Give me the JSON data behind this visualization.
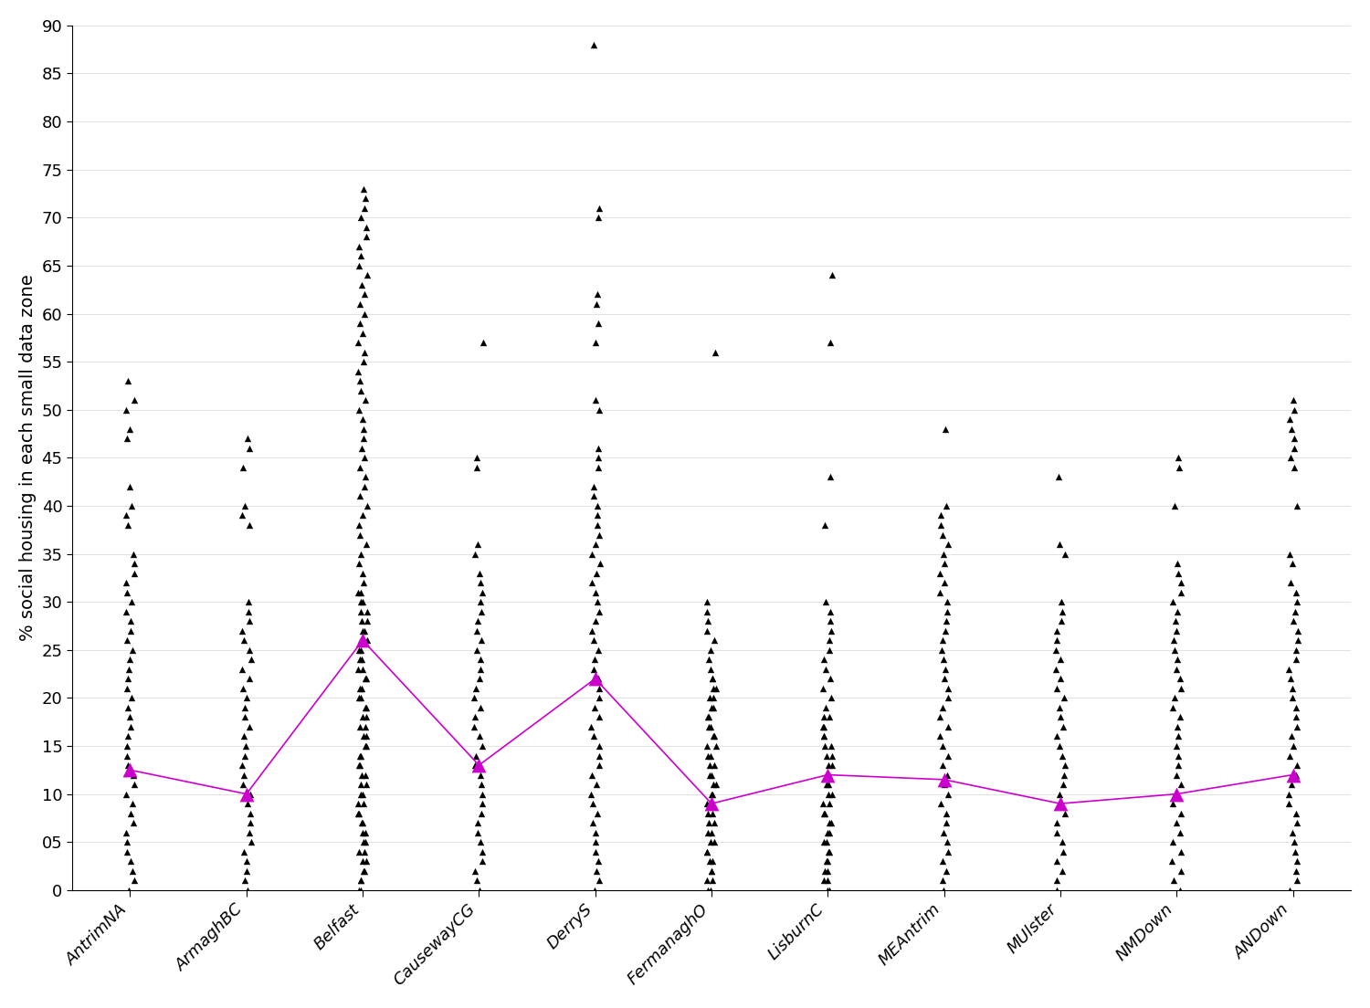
{
  "categories": [
    "AntrimNA",
    "ArmaghBC",
    "Belfast",
    "CausewayCG",
    "DerryS",
    "FermanaghO",
    "LisburnC",
    "MEAntrim",
    "MUlster",
    "NMDown",
    "ANDown"
  ],
  "medians": [
    12.5,
    10.0,
    26.0,
    13.0,
    22.0,
    9.0,
    12.0,
    11.5,
    9.0,
    10.0,
    12.0
  ],
  "point_data": {
    "AntrimNA": [
      0,
      1,
      2,
      3,
      4,
      5,
      6,
      7,
      8,
      9,
      10,
      11,
      12,
      13,
      14,
      15,
      16,
      17,
      18,
      19,
      20,
      21,
      22,
      23,
      24,
      25,
      26,
      27,
      28,
      29,
      30,
      31,
      32,
      33,
      34,
      35,
      38,
      39,
      40,
      42,
      47,
      48,
      50,
      51,
      53
    ],
    "ArmaghBC": [
      0,
      1,
      2,
      3,
      4,
      5,
      6,
      7,
      8,
      9,
      10,
      11,
      12,
      13,
      14,
      15,
      16,
      17,
      18,
      19,
      20,
      21,
      22,
      23,
      24,
      25,
      26,
      27,
      28,
      29,
      30,
      38,
      39,
      40,
      44,
      46,
      47
    ],
    "Belfast": [
      0,
      0,
      1,
      1,
      2,
      2,
      3,
      3,
      4,
      4,
      5,
      5,
      6,
      6,
      7,
      7,
      8,
      8,
      9,
      9,
      10,
      10,
      11,
      11,
      12,
      12,
      13,
      13,
      14,
      14,
      15,
      15,
      16,
      16,
      17,
      17,
      18,
      18,
      19,
      19,
      20,
      20,
      21,
      21,
      22,
      22,
      23,
      23,
      24,
      24,
      25,
      25,
      26,
      26,
      27,
      27,
      28,
      28,
      29,
      29,
      30,
      30,
      31,
      31,
      32,
      33,
      34,
      35,
      36,
      37,
      38,
      39,
      40,
      41,
      42,
      43,
      44,
      45,
      46,
      47,
      48,
      49,
      50,
      51,
      52,
      53,
      54,
      55,
      56,
      57,
      58,
      59,
      60,
      61,
      62,
      63,
      64,
      65,
      66,
      67,
      68,
      69,
      70,
      71,
      72,
      73
    ],
    "CausewayCG": [
      0,
      1,
      2,
      3,
      4,
      5,
      6,
      7,
      8,
      9,
      10,
      11,
      12,
      13,
      14,
      15,
      16,
      17,
      18,
      19,
      20,
      21,
      22,
      23,
      24,
      25,
      26,
      27,
      28,
      29,
      30,
      31,
      32,
      33,
      35,
      36,
      44,
      45,
      57
    ],
    "DerryS": [
      0,
      1,
      2,
      3,
      4,
      5,
      6,
      7,
      8,
      9,
      10,
      11,
      12,
      13,
      14,
      15,
      16,
      17,
      18,
      19,
      20,
      21,
      22,
      23,
      24,
      25,
      26,
      27,
      28,
      29,
      30,
      31,
      32,
      33,
      34,
      35,
      36,
      37,
      38,
      39,
      40,
      41,
      42,
      44,
      45,
      46,
      50,
      51,
      57,
      59,
      61,
      62,
      70,
      71,
      88
    ],
    "FermanaghO": [
      0,
      0,
      1,
      1,
      2,
      2,
      3,
      3,
      4,
      4,
      5,
      5,
      6,
      6,
      7,
      7,
      8,
      8,
      9,
      9,
      10,
      10,
      11,
      11,
      12,
      12,
      13,
      13,
      14,
      14,
      15,
      15,
      16,
      16,
      17,
      17,
      18,
      18,
      19,
      19,
      20,
      20,
      21,
      21,
      22,
      22,
      23,
      24,
      25,
      26,
      27,
      28,
      29,
      30,
      56
    ],
    "LisburnC": [
      0,
      0,
      1,
      1,
      2,
      2,
      3,
      3,
      4,
      4,
      5,
      5,
      6,
      6,
      7,
      7,
      8,
      8,
      9,
      9,
      10,
      10,
      11,
      11,
      12,
      12,
      13,
      13,
      14,
      14,
      15,
      15,
      16,
      16,
      17,
      17,
      18,
      18,
      19,
      20,
      21,
      22,
      23,
      24,
      25,
      26,
      27,
      28,
      29,
      30,
      38,
      43,
      57,
      64
    ],
    "MEAntrim": [
      0,
      1,
      2,
      3,
      4,
      5,
      6,
      7,
      8,
      9,
      10,
      11,
      12,
      13,
      14,
      15,
      16,
      17,
      18,
      19,
      20,
      21,
      22,
      23,
      24,
      25,
      26,
      27,
      28,
      29,
      30,
      31,
      32,
      33,
      34,
      35,
      36,
      37,
      38,
      39,
      40,
      48
    ],
    "MUlster": [
      0,
      1,
      2,
      3,
      4,
      5,
      6,
      7,
      8,
      9,
      10,
      11,
      12,
      13,
      14,
      15,
      16,
      17,
      18,
      19,
      20,
      21,
      22,
      23,
      24,
      25,
      26,
      27,
      28,
      29,
      30,
      35,
      36,
      43
    ],
    "NMDown": [
      0,
      1,
      2,
      3,
      4,
      5,
      6,
      7,
      8,
      9,
      10,
      11,
      12,
      13,
      14,
      15,
      16,
      17,
      18,
      19,
      20,
      21,
      22,
      23,
      24,
      25,
      26,
      27,
      28,
      29,
      30,
      31,
      32,
      33,
      34,
      40,
      44,
      45
    ],
    "ANDown": [
      0,
      1,
      2,
      3,
      4,
      5,
      6,
      7,
      8,
      9,
      10,
      11,
      12,
      13,
      14,
      15,
      16,
      17,
      18,
      19,
      20,
      21,
      22,
      23,
      24,
      25,
      26,
      27,
      28,
      29,
      30,
      31,
      32,
      34,
      35,
      40,
      44,
      45,
      46,
      47,
      48,
      49,
      50,
      51
    ]
  },
  "ylabel": "% social housing in each small data zone",
  "ylim": [
    0,
    90
  ],
  "yticks": [
    0,
    5,
    10,
    15,
    20,
    25,
    30,
    35,
    40,
    45,
    50,
    55,
    60,
    65,
    70,
    75,
    80,
    85,
    90
  ],
  "ytick_labels": [
    "0",
    "05",
    "10",
    "15",
    "20",
    "25",
    "30",
    "35",
    "40",
    "45",
    "50",
    "55",
    "60",
    "65",
    "70",
    "75",
    "80",
    "85",
    "90"
  ],
  "triangle_color": "#000000",
  "line_color": "#cc00cc",
  "median_marker_color": "#cc00cc",
  "background_color": "#ffffff",
  "jitter_seed": 42,
  "triangle_size": 28,
  "median_marker_size": 130
}
